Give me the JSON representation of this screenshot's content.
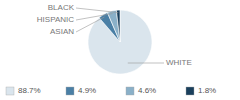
{
  "chart_data": {
    "type": "pie",
    "categories": [
      "WHITE",
      "ASIAN",
      "HISPANIC",
      "BLACK"
    ],
    "values": [
      88.7,
      4.9,
      4.6,
      1.8
    ],
    "value_labels": [
      "88.7%",
      "4.9%",
      "4.6%",
      "1.8%"
    ],
    "colors": [
      "#dae5ed",
      "#4a7fa5",
      "#8ab0c8",
      "#1a3f5c"
    ],
    "legend": "bottom"
  }
}
